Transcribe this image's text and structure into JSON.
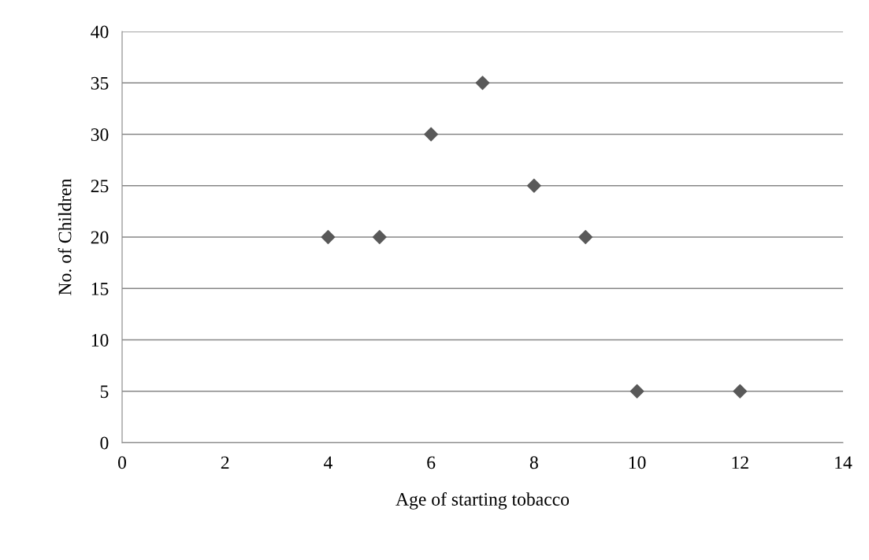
{
  "chart_data": {
    "type": "scatter",
    "xlabel": "Age of starting tobacco",
    "ylabel": "No. of Children",
    "series": [
      {
        "color": "#595959",
        "x": [
          4,
          5,
          6,
          7,
          8,
          9,
          10,
          12
        ],
        "values": [
          20,
          20,
          30,
          35,
          25,
          20,
          5,
          5
        ]
      }
    ],
    "xlim": [
      0,
      14
    ],
    "xticks": [
      0,
      2,
      4,
      6,
      8,
      10,
      12,
      14
    ],
    "ylim": [
      0,
      40
    ],
    "yticks": [
      0,
      5,
      10,
      15,
      20,
      25,
      30,
      35,
      40
    ],
    "grid": "y",
    "marker": "diamond",
    "legend": false
  }
}
